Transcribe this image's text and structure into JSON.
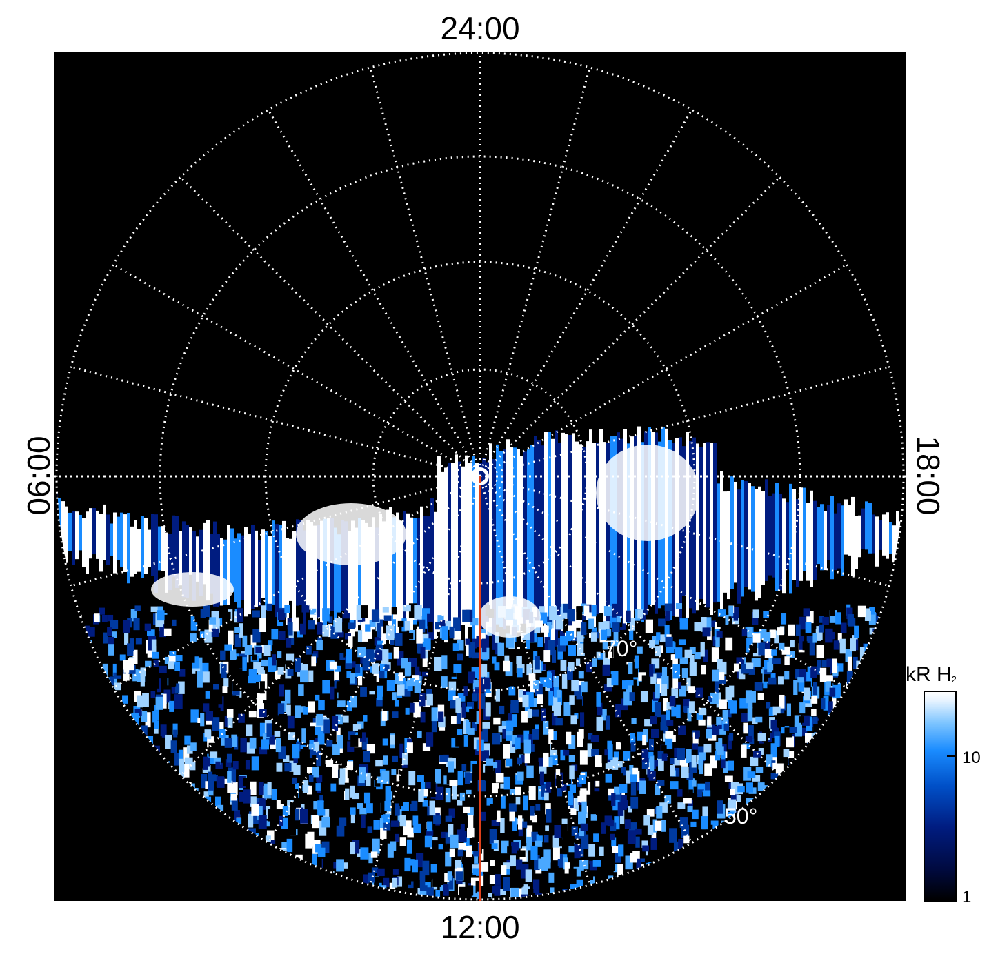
{
  "local_time_labels": {
    "top": "24:00",
    "bottom": "12:00",
    "left": "06:00",
    "right": "18:00"
  },
  "latitude_labels": {
    "inner": "70°",
    "outer": "50°"
  },
  "colorbar": {
    "title": "kR H",
    "title_sub": "2",
    "ticks": [
      "10",
      "1"
    ],
    "colors": [
      "#000000",
      "#001c80",
      "#1a8cff",
      "#ffffff"
    ]
  },
  "colors": {
    "background": "#000000",
    "grid": "#ffffff",
    "meridian_line": "#e0401a",
    "aurora_low": "#001c80",
    "aurora_mid": "#1a8cff",
    "aurora_high": "#ffffff"
  }
}
